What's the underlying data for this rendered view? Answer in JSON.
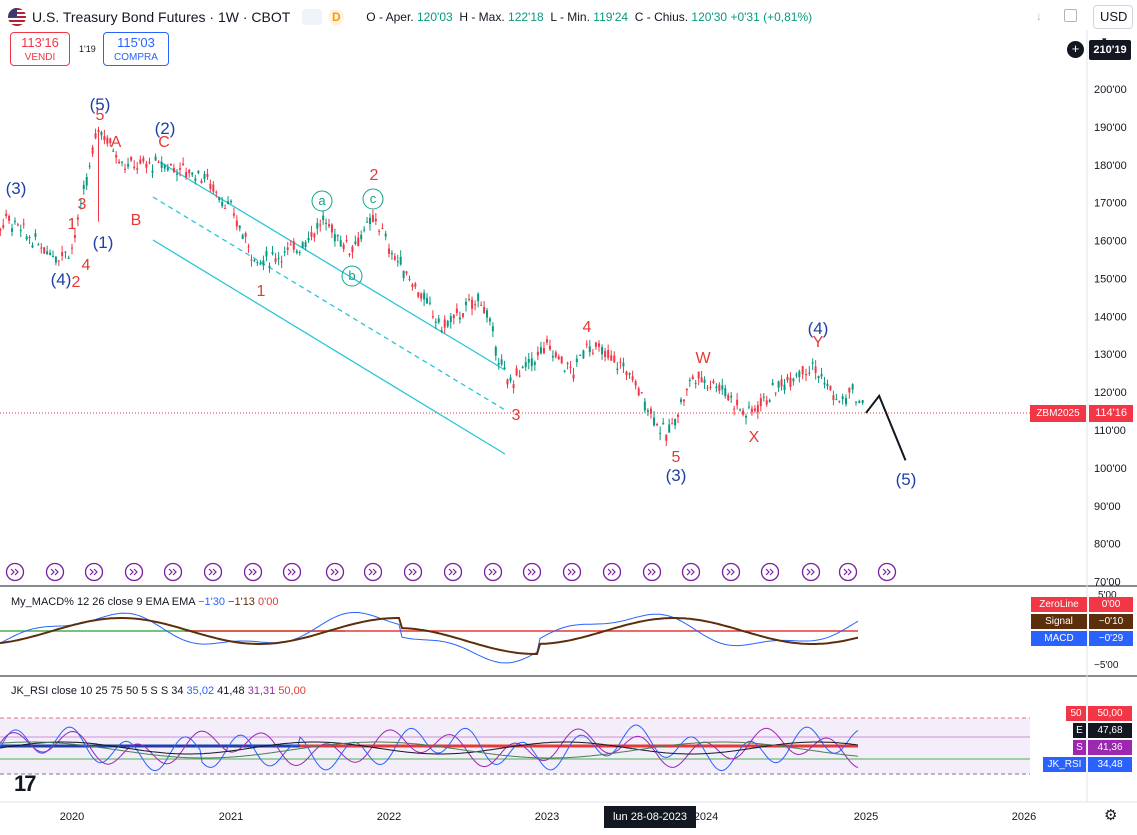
{
  "header": {
    "symbol_title": "U.S. Treasury Bond Futures · 1W · CBOT",
    "interval_badge": "D",
    "ohlc": {
      "open_label": "O - Aper.",
      "open": "120'03",
      "high_label": "H - Max.",
      "high": "122'18",
      "low_label": "L - Min.",
      "low": "119'24",
      "close_label": "C - Chius.",
      "close": "120'30",
      "change": "+0'31 (+0,81%)"
    },
    "currency": "USD",
    "sell_price": "113'16",
    "sell_label": "VENDI",
    "spread": "1'19",
    "buy_price": "115'03",
    "buy_label": "COMPRA",
    "crosshair_price": "210'19"
  },
  "price_axis": {
    "ticks": [
      "200'00",
      "190'00",
      "180'00",
      "170'00",
      "160'00",
      "150'00",
      "140'00",
      "130'00",
      "120'00",
      "110'00",
      "100'00",
      "90'00",
      "80'00",
      "70'00"
    ],
    "last_price_tag": "ZBM2025",
    "last_price": "114'16"
  },
  "time_axis": {
    "ticks": [
      "2020",
      "2021",
      "2022",
      "2023",
      "2024",
      "2025",
      "2026"
    ],
    "crosshair_label": "lun 28-08-2023"
  },
  "macd": {
    "legend_name": "My_MACD%",
    "legend_params": "12 26 close 9 EMA EMA",
    "legend_v1": "−1'30",
    "legend_v2": "−1'13",
    "legend_v3": "0'00",
    "axis_top": "5'00",
    "axis_bottom": "−5'00",
    "tag_zero_label": "ZeroLine",
    "tag_zero_value": "0'00",
    "tag_signal_label": "Signal",
    "tag_signal_value": "−0'10",
    "tag_macd_label": "MACD",
    "tag_macd_value": "−0'29",
    "colors": {
      "macd": "#2962ff",
      "signal": "#5d2e0c",
      "zero": "#e53935",
      "zero_green": "#4caf50"
    }
  },
  "rsi": {
    "legend_name": "JK_RSI",
    "legend_params": "close 10 25 75 50 5 S S 34",
    "legend_v1": "35,02",
    "legend_v2": "41,48",
    "legend_v3": "31,31",
    "legend_v4": "50,00",
    "tag_50_label": "50",
    "tag_50_value": "50,00",
    "tag_e_label": "E",
    "tag_e_value": "47,68",
    "tag_s_label": "S",
    "tag_s_value": "41,36",
    "tag_jk_label": "JK_RSI",
    "tag_jk_value": "34,48"
  },
  "wave_labels": [
    {
      "text": "(5)",
      "color": "blue"
    },
    {
      "text": "5",
      "color": "red"
    },
    {
      "text": "A",
      "color": "red"
    },
    {
      "text": "(2)",
      "color": "blue"
    },
    {
      "text": "C",
      "color": "red"
    },
    {
      "text": "(3)",
      "color": "blue"
    },
    {
      "text": "3",
      "color": "red"
    },
    {
      "text": "1",
      "color": "red"
    },
    {
      "text": "B",
      "color": "red"
    },
    {
      "text": "(1)",
      "color": "blue"
    },
    {
      "text": "4",
      "color": "red"
    },
    {
      "text": "(4)",
      "color": "blue"
    },
    {
      "text": "2",
      "color": "red"
    },
    {
      "text": "1",
      "color": "red"
    },
    {
      "text": "2",
      "color": "red"
    },
    {
      "text": "a",
      "color": "teal"
    },
    {
      "text": "c",
      "color": "teal"
    },
    {
      "text": "b",
      "color": "teal"
    },
    {
      "text": "3",
      "color": "red"
    },
    {
      "text": "4",
      "color": "red"
    },
    {
      "text": "5",
      "color": "red"
    },
    {
      "text": "(3)",
      "color": "blue"
    },
    {
      "text": "W",
      "color": "red"
    },
    {
      "text": "X",
      "color": "red"
    },
    {
      "text": "(4)",
      "color": "blue"
    },
    {
      "text": "Y",
      "color": "red"
    },
    {
      "text": "(5)",
      "color": "blue"
    }
  ],
  "chart_data": {
    "type": "candlestick",
    "title": "U.S. Treasury Bond Futures · 1W · CBOT",
    "y_unit": "price (points'32nds)",
    "ylim": [
      70,
      210
    ],
    "x_range": [
      "2019-06",
      "2026-10"
    ],
    "path_points": [
      {
        "date": "2019-06",
        "price": 156
      },
      {
        "date": "2019-08",
        "price": 166
      },
      {
        "date": "2019-10",
        "price": 160
      },
      {
        "date": "2019-12",
        "price": 156
      },
      {
        "date": "2020-01",
        "price": 158
      },
      {
        "date": "2020-03",
        "price": 190
      },
      {
        "date": "2020-05",
        "price": 180
      },
      {
        "date": "2020-08",
        "price": 180
      },
      {
        "date": "2020-11",
        "price": 177
      },
      {
        "date": "2021-01",
        "price": 168
      },
      {
        "date": "2021-03",
        "price": 154
      },
      {
        "date": "2021-06",
        "price": 158
      },
      {
        "date": "2021-08",
        "price": 165
      },
      {
        "date": "2021-10",
        "price": 158
      },
      {
        "date": "2021-12",
        "price": 166
      },
      {
        "date": "2022-01",
        "price": 158
      },
      {
        "date": "2022-03",
        "price": 148
      },
      {
        "date": "2022-05",
        "price": 137
      },
      {
        "date": "2022-08",
        "price": 145
      },
      {
        "date": "2022-10",
        "price": 122
      },
      {
        "date": "2023-01",
        "price": 132
      },
      {
        "date": "2023-03",
        "price": 125
      },
      {
        "date": "2023-04",
        "price": 133
      },
      {
        "date": "2023-07",
        "price": 126
      },
      {
        "date": "2023-10",
        "price": 108
      },
      {
        "date": "2023-12",
        "price": 124
      },
      {
        "date": "2024-02",
        "price": 122
      },
      {
        "date": "2024-04",
        "price": 114
      },
      {
        "date": "2024-06",
        "price": 120
      },
      {
        "date": "2024-08",
        "price": 126
      },
      {
        "date": "2024-09",
        "price": 127
      },
      {
        "date": "2024-11",
        "price": 117
      },
      {
        "date": "2024-12",
        "price": 120
      },
      {
        "date": "2025-01",
        "price": 114.5
      }
    ],
    "projection": [
      {
        "date": "2025-01",
        "price": 114.5
      },
      {
        "date": "2025-02",
        "price": 119
      },
      {
        "date": "2025-04",
        "price": 102
      }
    ],
    "last_price": 114.5
  }
}
